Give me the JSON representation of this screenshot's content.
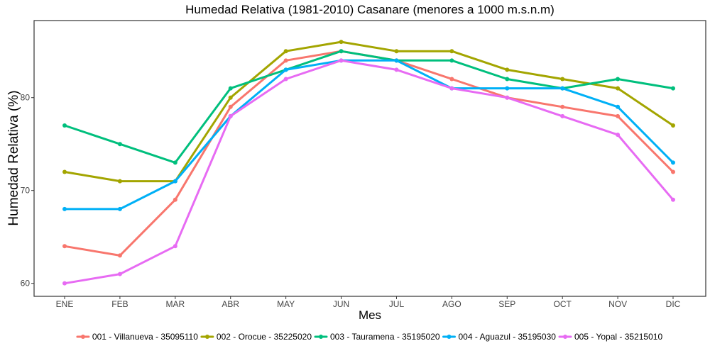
{
  "chart_data": {
    "type": "line",
    "title": "Humedad Relativa (1981-2010) Casanare (menores a 1000 m.s.n.m)",
    "xlabel": "Mes",
    "ylabel": "Humedad Relativa (%)",
    "categories": [
      "ENE",
      "FEB",
      "MAR",
      "ABR",
      "MAY",
      "JUN",
      "JUL",
      "AGO",
      "SEP",
      "OCT",
      "NOV",
      "DIC"
    ],
    "ylim": [
      58.6,
      88.3
    ],
    "yticks": [
      60,
      70,
      80
    ],
    "grid": false,
    "legend_position": "bottom",
    "series": [
      {
        "name": "001 - Villanueva - 35095110",
        "color": "#F8766D",
        "values": [
          64,
          63,
          69,
          79,
          84,
          85,
          84,
          82,
          80,
          79,
          78,
          72
        ]
      },
      {
        "name": "002 - Orocue - 35225020",
        "color": "#A3A500",
        "values": [
          72,
          71,
          71,
          80,
          85,
          86,
          85,
          85,
          83,
          82,
          81,
          77
        ]
      },
      {
        "name": "003 - Tauramena - 35195020",
        "color": "#00BF7D",
        "values": [
          77,
          75,
          73,
          81,
          83,
          85,
          84,
          84,
          82,
          81,
          82,
          81
        ]
      },
      {
        "name": "004 - Aguazul - 35195030",
        "color": "#00B0F6",
        "values": [
          68,
          68,
          71,
          78,
          83,
          84,
          84,
          81,
          81,
          81,
          79,
          73
        ]
      },
      {
        "name": "005 - Yopal - 35215010",
        "color": "#E76BF3",
        "values": [
          60,
          61,
          64,
          78,
          82,
          84,
          83,
          81,
          80,
          78,
          76,
          69
        ]
      }
    ]
  }
}
